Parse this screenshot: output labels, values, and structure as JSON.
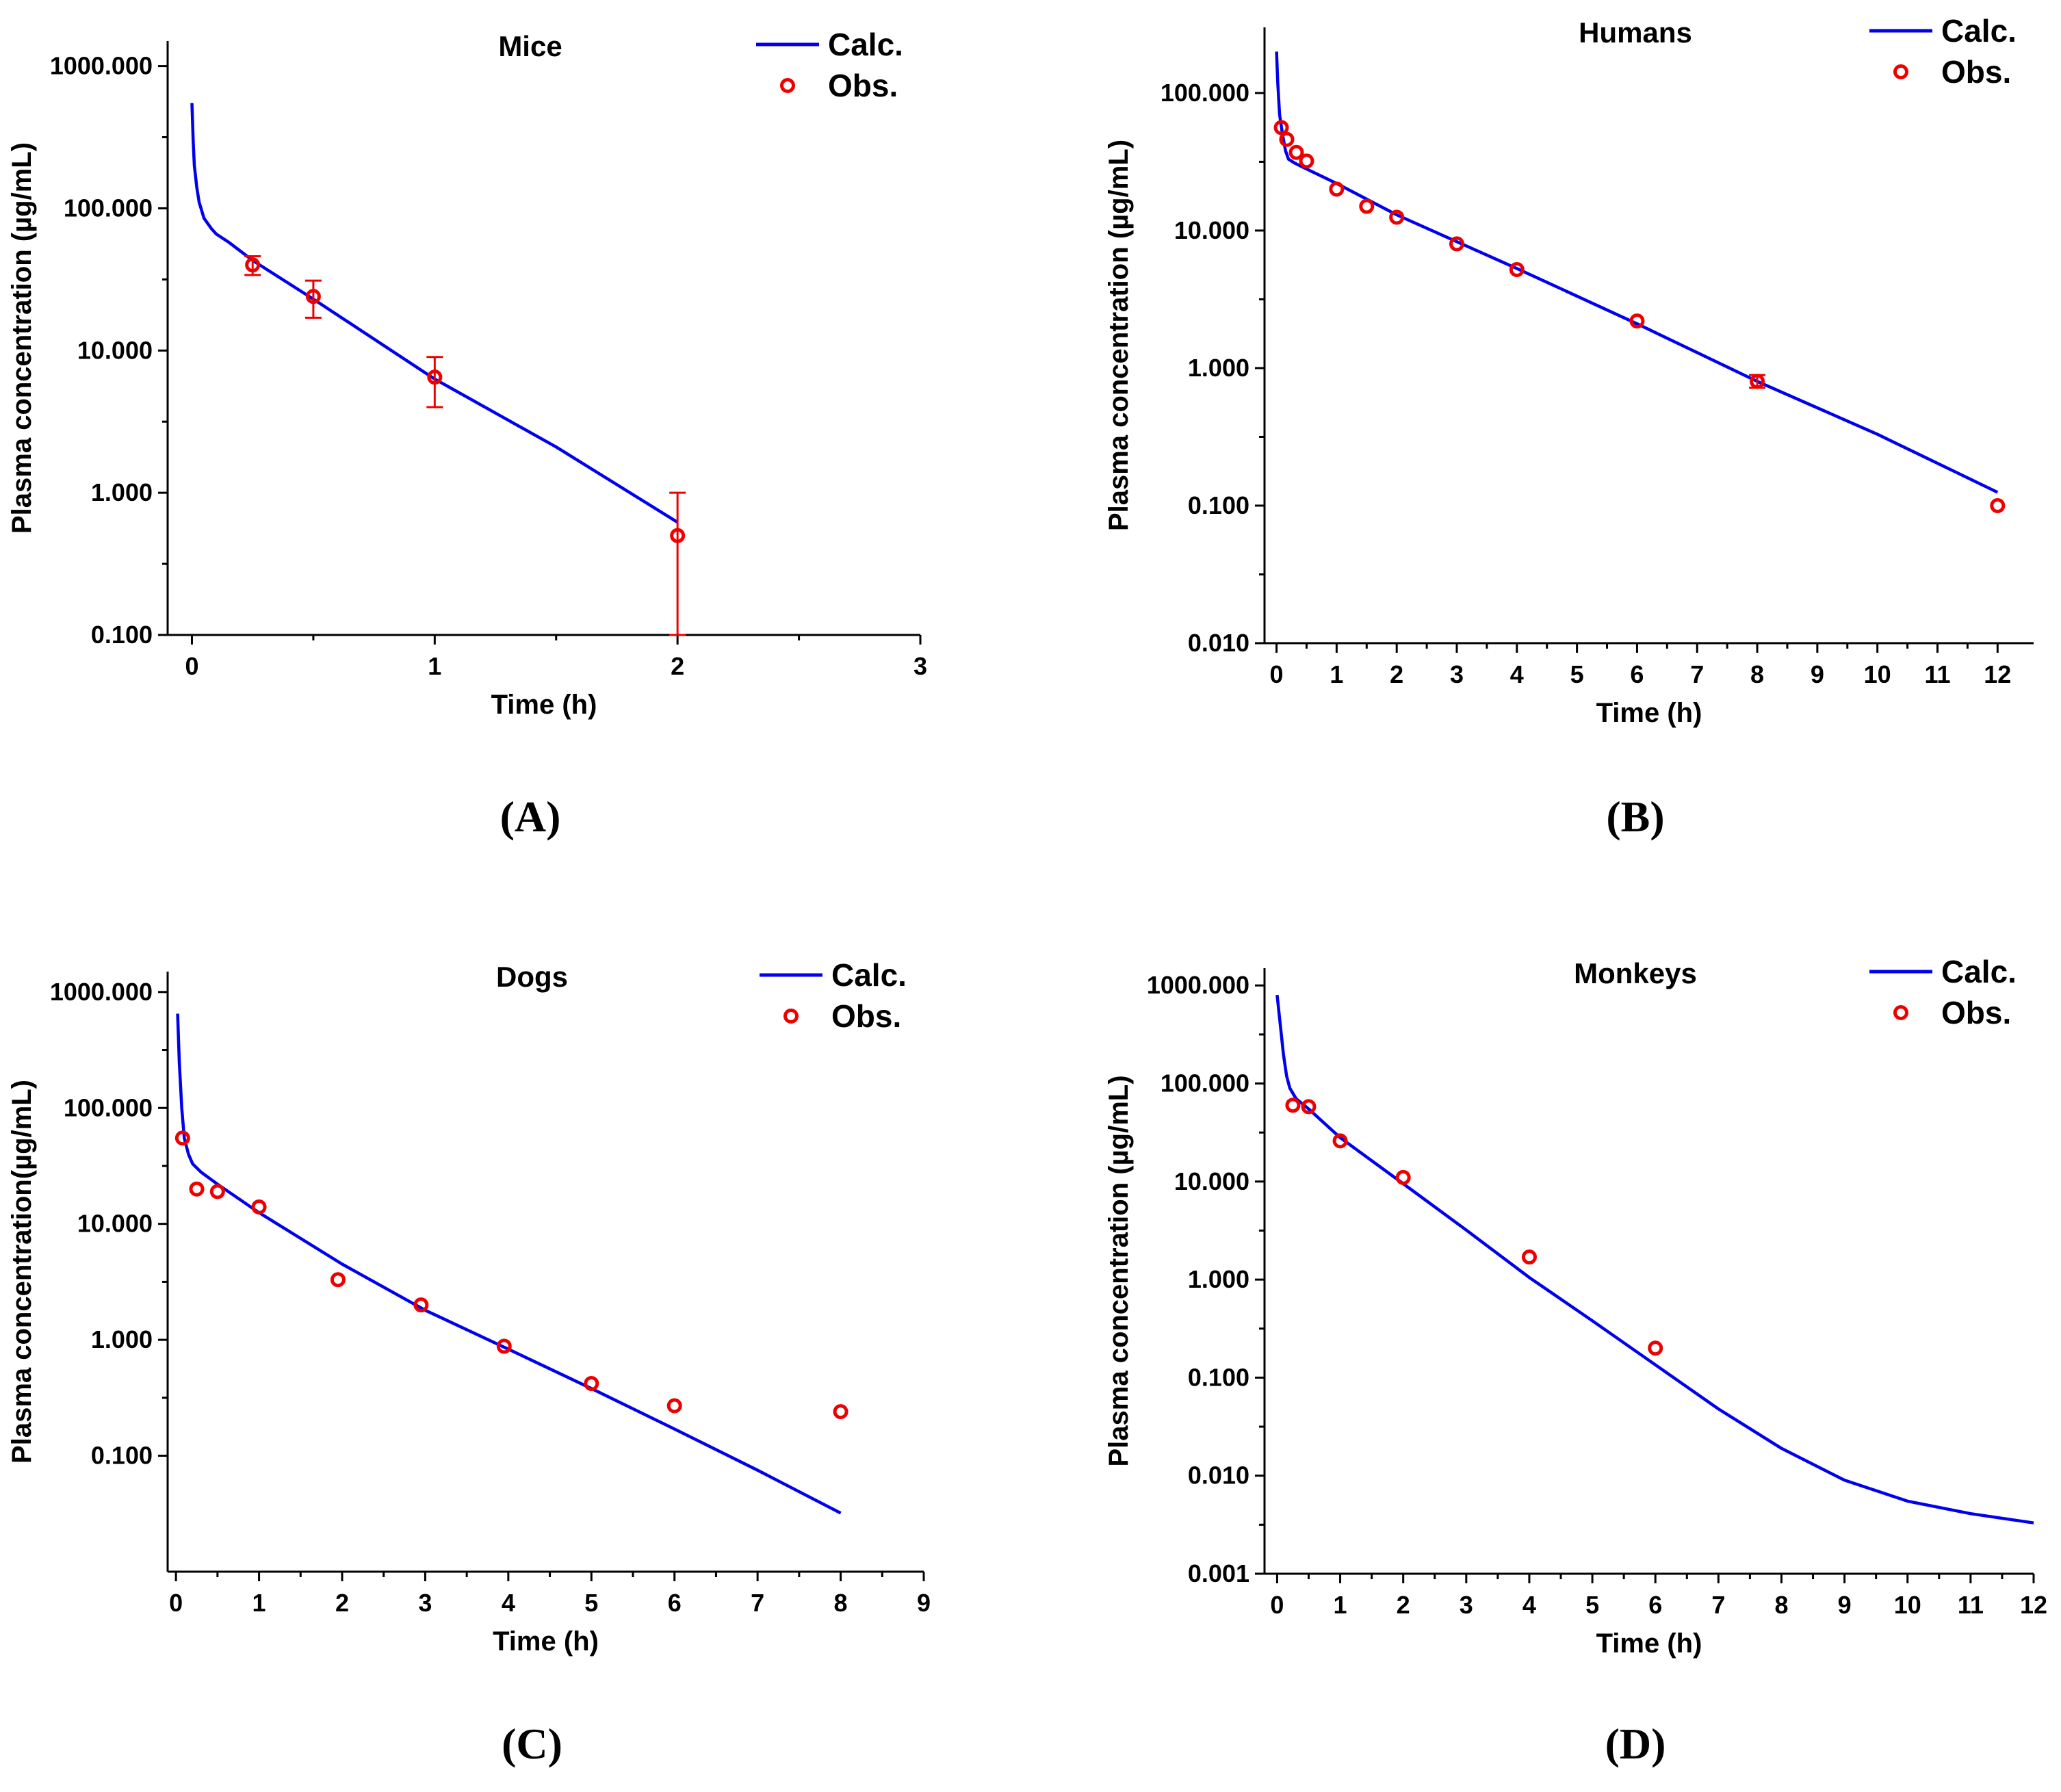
{
  "colors": {
    "calc": "#0000ee",
    "obs": "#ee0000",
    "axis": "#000000"
  },
  "chart_data": [
    {
      "panel": "(A)",
      "type": "line",
      "title": "Mice",
      "xlabel": "Time (h)",
      "ylabel": "Plasma concentration (µg/mL)",
      "yscale": "log",
      "xlim": [
        -0.1,
        3
      ],
      "ylim": [
        0.1,
        1500
      ],
      "xticks": [
        0,
        1,
        2,
        3
      ],
      "xtick_labels": [
        "0",
        "1",
        "2",
        "3"
      ],
      "yticks": [
        0.1,
        1,
        10,
        100,
        1000
      ],
      "ytick_labels": [
        "0.100",
        "1.000",
        "10.000",
        "100.000",
        "1000.000"
      ],
      "legend": [
        "Calc.",
        "Obs."
      ],
      "series": [
        {
          "name": "Calc.",
          "kind": "line",
          "x": [
            0,
            0.005,
            0.01,
            0.02,
            0.03,
            0.05,
            0.08,
            0.1,
            0.15,
            0.25,
            0.5,
            1,
            1.5,
            2
          ],
          "y": [
            550,
            300,
            200,
            140,
            110,
            85,
            72,
            66,
            58,
            43,
            23,
            6.3,
            2.1,
            0.62
          ]
        },
        {
          "name": "Obs.",
          "kind": "scatter",
          "x": [
            0.25,
            0.5,
            1,
            2
          ],
          "y": [
            40,
            24,
            6.5,
            0.5
          ],
          "err_low": [
            34,
            17,
            4,
            0.1
          ],
          "err_high": [
            46,
            31,
            9,
            1
          ]
        }
      ]
    },
    {
      "panel": "(B)",
      "type": "line",
      "title": "Humans",
      "xlabel": "Time (h)",
      "ylabel": "Plasma concentration (µg/mL)",
      "yscale": "log",
      "xlim": [
        -0.2,
        12.6
      ],
      "ylim": [
        0.01,
        300
      ],
      "xticks": [
        0,
        1,
        2,
        3,
        4,
        5,
        6,
        7,
        8,
        9,
        10,
        11,
        12
      ],
      "xtick_labels": [
        "0",
        "1",
        "2",
        "3",
        "4",
        "5",
        "6",
        "7",
        "8",
        "9",
        "10",
        "11",
        "12"
      ],
      "yticks": [
        0.01,
        0.1,
        1,
        10,
        100
      ],
      "ytick_labels": [
        "0.010",
        "0.100",
        "1.000",
        "10.000",
        "100.000"
      ],
      "legend": [
        "Calc.",
        "Obs."
      ],
      "series": [
        {
          "name": "Calc.",
          "kind": "line",
          "x": [
            0,
            0.02,
            0.05,
            0.1,
            0.15,
            0.2,
            0.3,
            0.5,
            1,
            2,
            3,
            4,
            6,
            8,
            10,
            12
          ],
          "y": [
            200,
            120,
            70,
            50,
            38,
            33,
            31,
            28,
            22,
            13,
            8.3,
            5.3,
            2.1,
            0.8,
            0.33,
            0.125
          ]
        },
        {
          "name": "Obs.",
          "kind": "scatter",
          "x": [
            0.08,
            0.17,
            0.33,
            0.5,
            1,
            1.5,
            2,
            3,
            4,
            6,
            8,
            12
          ],
          "y": [
            56,
            46,
            37,
            32,
            20,
            15,
            12.5,
            8,
            5.2,
            2.2,
            0.8,
            0.1
          ],
          "err_low": [
            null,
            null,
            null,
            null,
            null,
            null,
            null,
            null,
            null,
            null,
            0.72,
            null
          ],
          "err_high": [
            null,
            null,
            null,
            null,
            null,
            null,
            null,
            null,
            null,
            null,
            0.89,
            null
          ]
        }
      ]
    },
    {
      "panel": "(C)",
      "type": "line",
      "title": "Dogs",
      "xlabel": "Time (h)",
      "ylabel": "Plasma concentration(µg/mL)",
      "yscale": "log",
      "xlim": [
        -0.1,
        9
      ],
      "ylim": [
        0.01,
        1500
      ],
      "xticks": [
        0,
        1,
        2,
        3,
        4,
        5,
        6,
        7,
        8,
        9
      ],
      "xtick_labels": [
        "0",
        "1",
        "2",
        "3",
        "4",
        "5",
        "6",
        "7",
        "8",
        "9"
      ],
      "yticks": [
        0.1,
        1,
        10,
        100,
        1000
      ],
      "ytick_labels": [
        "0.100",
        "1.000",
        "10.000",
        "100.000",
        "1000.000"
      ],
      "legend": [
        "Calc.",
        "Obs."
      ],
      "series": [
        {
          "name": "Calc.",
          "kind": "line",
          "x": [
            0.02,
            0.04,
            0.07,
            0.1,
            0.15,
            0.2,
            0.3,
            0.5,
            1,
            2,
            3,
            4,
            5,
            6,
            7,
            8
          ],
          "y": [
            650,
            250,
            100,
            55,
            40,
            33,
            28,
            22,
            12.5,
            4.5,
            1.8,
            0.83,
            0.38,
            0.17,
            0.075,
            0.032
          ]
        },
        {
          "name": "Obs.",
          "kind": "scatter",
          "x": [
            0.08,
            0.25,
            0.5,
            1,
            1.95,
            2.95,
            3.95,
            5,
            6,
            8
          ],
          "y": [
            55,
            20,
            19,
            14,
            3.3,
            2,
            0.88,
            0.42,
            0.27,
            0.24
          ]
        }
      ]
    },
    {
      "panel": "(D)",
      "type": "line",
      "title": "Monkeys",
      "xlabel": "Time (h)",
      "ylabel": "Plasma concentration (µg/mL)",
      "yscale": "log",
      "xlim": [
        -0.2,
        12
      ],
      "ylim": [
        0.001,
        1500
      ],
      "xticks": [
        0,
        1,
        2,
        3,
        4,
        5,
        6,
        7,
        8,
        9,
        10,
        11,
        12
      ],
      "xtick_labels": [
        "0",
        "1",
        "2",
        "3",
        "4",
        "5",
        "6",
        "7",
        "8",
        "9",
        "10",
        "11",
        "12"
      ],
      "yticks": [
        0.001,
        0.01,
        0.1,
        1,
        10,
        100,
        1000
      ],
      "ytick_labels": [
        "0.001",
        "0.010",
        "0.100",
        "1.000",
        "10.000",
        "100.000",
        "1000.000"
      ],
      "legend": [
        "Calc.",
        "Obs."
      ],
      "series": [
        {
          "name": "Calc.",
          "kind": "line",
          "x": [
            0,
            0.05,
            0.1,
            0.15,
            0.2,
            0.3,
            0.5,
            1,
            2,
            3,
            4,
            5,
            6,
            7,
            8,
            9,
            10,
            11,
            12
          ],
          "y": [
            800,
            400,
            200,
            120,
            90,
            70,
            55,
            28,
            9.5,
            3.2,
            1.05,
            0.38,
            0.135,
            0.048,
            0.019,
            0.009,
            0.0055,
            0.0041,
            0.0033
          ]
        },
        {
          "name": "Obs.",
          "kind": "scatter",
          "x": [
            0.25,
            0.5,
            1,
            2,
            4,
            6
          ],
          "y": [
            60,
            58,
            26,
            11,
            1.7,
            0.2
          ]
        }
      ]
    }
  ]
}
